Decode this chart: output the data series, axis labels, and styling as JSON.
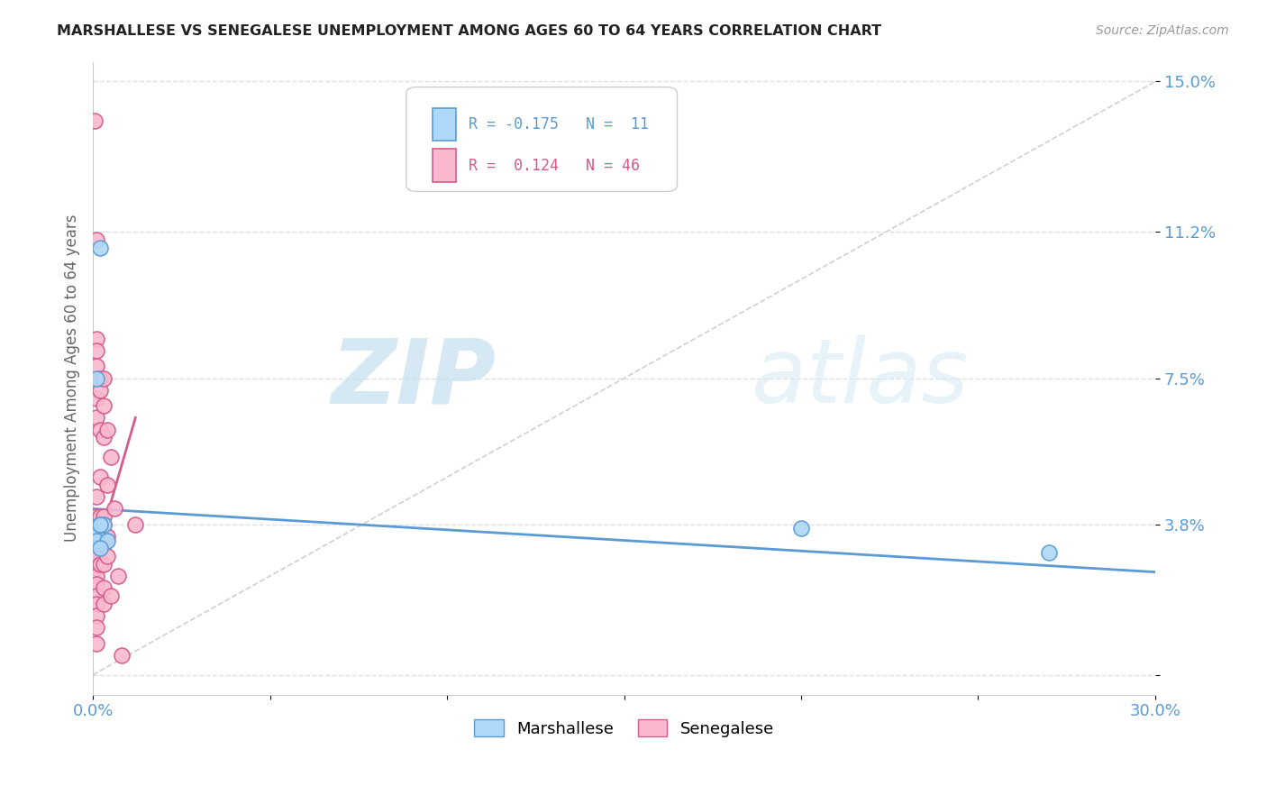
{
  "title": "MARSHALLESE VS SENEGALESE UNEMPLOYMENT AMONG AGES 60 TO 64 YEARS CORRELATION CHART",
  "source": "Source: ZipAtlas.com",
  "ylabel": "Unemployment Among Ages 60 to 64 years",
  "xlim": [
    0,
    0.3
  ],
  "ylim": [
    -0.005,
    0.155
  ],
  "blue_scatter_x": [
    0.001,
    0.001,
    0.002,
    0.002,
    0.003,
    0.004,
    0.002,
    0.001,
    0.2,
    0.27,
    0.002
  ],
  "blue_scatter_y": [
    0.036,
    0.034,
    0.038,
    0.108,
    0.038,
    0.034,
    0.032,
    0.075,
    0.037,
    0.031,
    0.038
  ],
  "pink_scatter_x": [
    0.0005,
    0.001,
    0.001,
    0.001,
    0.001,
    0.001,
    0.001,
    0.001,
    0.001,
    0.001,
    0.001,
    0.001,
    0.001,
    0.001,
    0.001,
    0.001,
    0.001,
    0.001,
    0.001,
    0.001,
    0.002,
    0.002,
    0.002,
    0.002,
    0.002,
    0.002,
    0.002,
    0.003,
    0.003,
    0.003,
    0.003,
    0.003,
    0.003,
    0.003,
    0.003,
    0.003,
    0.004,
    0.004,
    0.004,
    0.004,
    0.005,
    0.005,
    0.006,
    0.007,
    0.008,
    0.012
  ],
  "pink_scatter_y": [
    0.14,
    0.11,
    0.085,
    0.082,
    0.078,
    0.07,
    0.065,
    0.045,
    0.04,
    0.035,
    0.032,
    0.03,
    0.027,
    0.025,
    0.023,
    0.02,
    0.018,
    0.015,
    0.012,
    0.008,
    0.075,
    0.072,
    0.062,
    0.05,
    0.04,
    0.033,
    0.028,
    0.075,
    0.068,
    0.06,
    0.04,
    0.038,
    0.033,
    0.028,
    0.022,
    0.018,
    0.062,
    0.048,
    0.035,
    0.03,
    0.055,
    0.02,
    0.042,
    0.025,
    0.005,
    0.038
  ],
  "blue_line_x": [
    0.0,
    0.3
  ],
  "blue_line_y": [
    0.042,
    0.026
  ],
  "pink_line_x": [
    0.0,
    0.012
  ],
  "pink_line_y": [
    0.028,
    0.065
  ],
  "diag_line_x": [
    0.0,
    0.3
  ],
  "diag_line_y": [
    0.0,
    0.15
  ],
  "legend_blue_label": "Marshallese",
  "legend_pink_label": "Senegalese",
  "blue_R": "-0.175",
  "blue_N": "11",
  "pink_R": "0.124",
  "pink_N": "46",
  "blue_color": "#add8f7",
  "pink_color": "#f9b8ce",
  "blue_line_color": "#5b9bd5",
  "pink_line_color": "#d45b8a",
  "diag_line_color": "#d0d0d0",
  "watermark_zip": "ZIP",
  "watermark_atlas": "atlas",
  "background_color": "#ffffff",
  "grid_color": "#e0e0e0"
}
